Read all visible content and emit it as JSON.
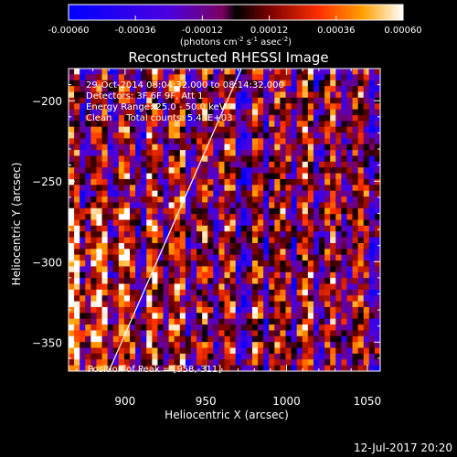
{
  "chart_data": {
    "type": "heatmap",
    "title": "Reconstructed RHESSI Image",
    "xlabel": "Heliocentric X (arcsec)",
    "ylabel": "Heliocentric Y (arcsec)",
    "xlim": [
      865,
      1058
    ],
    "ylim": [
      -368,
      -180
    ],
    "xticks": [
      900,
      950,
      1000,
      1050
    ],
    "yticks": [
      -200,
      -250,
      -300,
      -350
    ],
    "colorbar": {
      "min": -0.0006,
      "max": 0.0006,
      "ticks": [
        "-0.00060",
        "-0.00036",
        "-0.00012",
        "0.00012",
        "0.00036",
        "0.00060"
      ],
      "unit_label": "(photons cm",
      "unit_sup1": "-2",
      "unit_mid": " s",
      "unit_sup2": "-1",
      "unit_mid2": " asec",
      "unit_sup3": "-2",
      "unit_end": ")"
    },
    "annotations": [
      "29-Oct-2014 08:04:32.000 to 08:14:32.000",
      "Detectors: 3F 6F 9F, Att 1",
      "Energy Range: 25.0 - 50.0 keV",
      "Clean     Total counts: 5.43E+03"
    ],
    "peak_label": "Position of Peak = [958,-311]",
    "limb_line": {
      "x": [
        890,
        972
      ],
      "y": [
        -368,
        -180
      ]
    },
    "grid": false
  },
  "footer": {
    "date": "12-Jul-2017 20:20"
  }
}
